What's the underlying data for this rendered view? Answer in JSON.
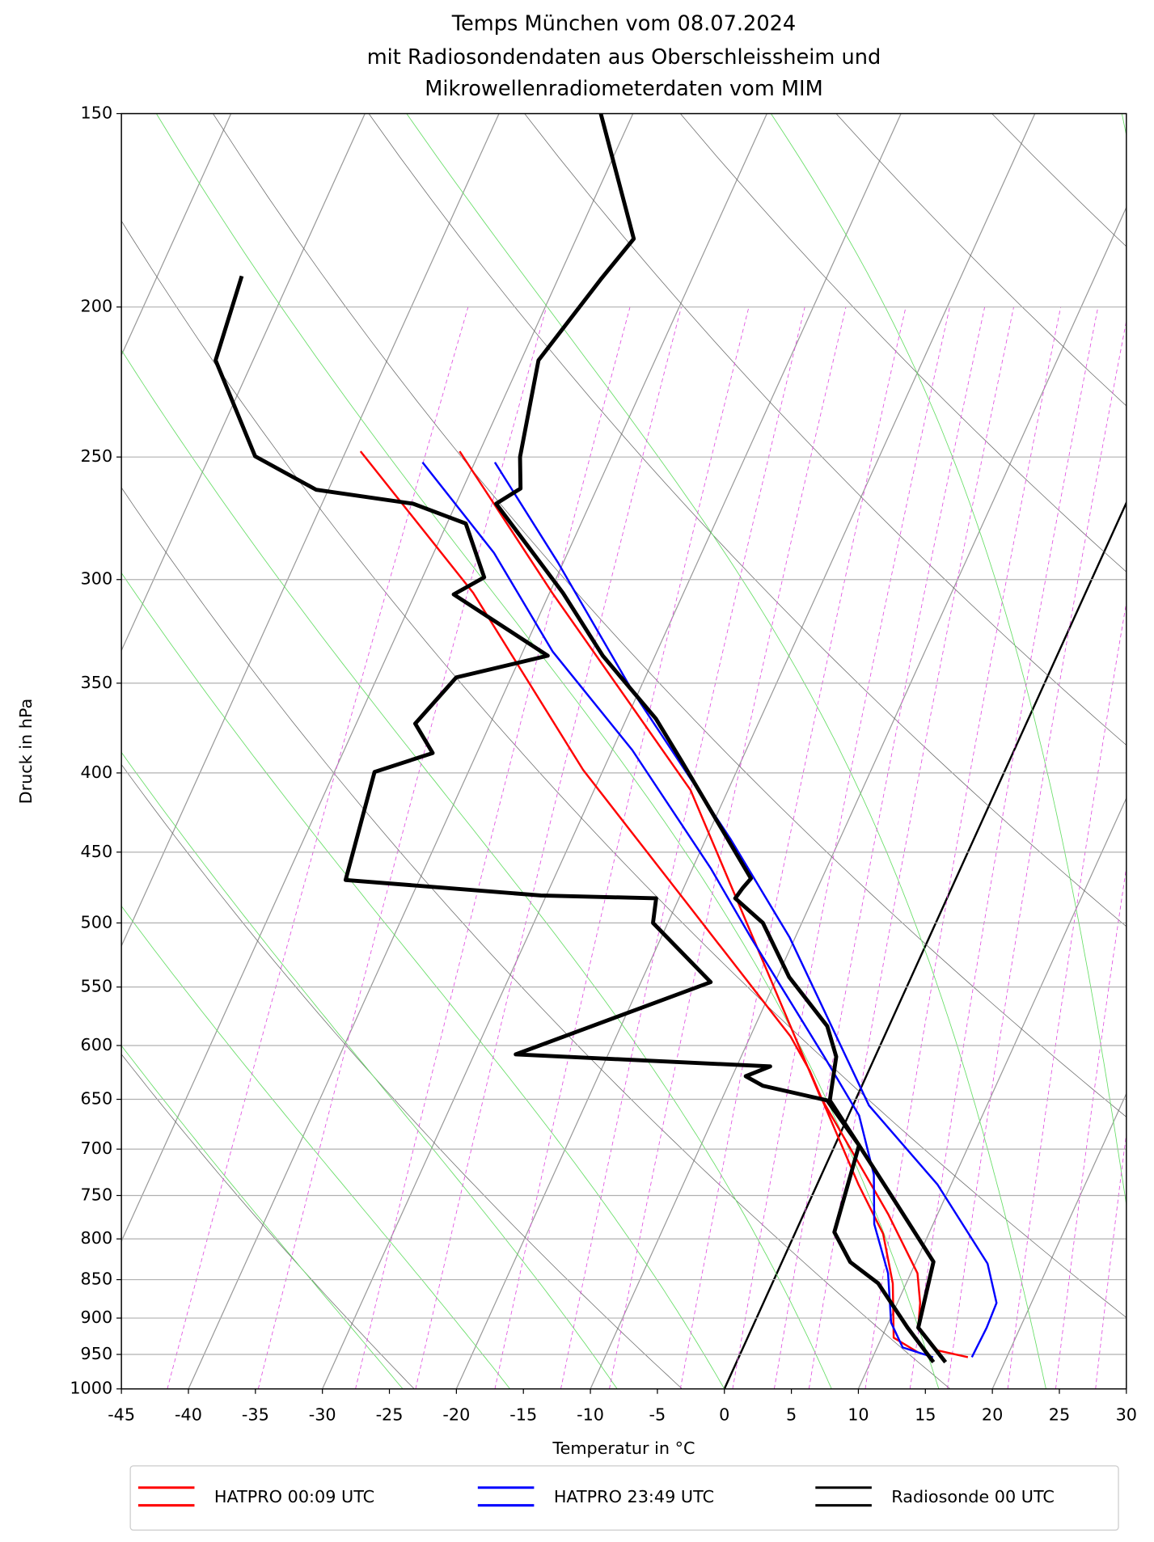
{
  "chart_data": {
    "type": "skewt",
    "title": [
      "Temps München vom 08.07.2024",
      "mit Radiosondendaten aus Oberschleissheim und",
      "Mikrowellenradiometerdaten vom MIM"
    ],
    "x_label": "Temperatur in °C",
    "y_label": "Druck in hPa",
    "log_y": true,
    "grid": true,
    "xlim": [
      -45,
      30
    ],
    "xticks": [
      -45,
      -40,
      -35,
      -30,
      -25,
      -20,
      -15,
      -10,
      -5,
      0,
      5,
      10,
      15,
      20,
      25,
      30
    ],
    "ylim": [
      1000,
      150
    ],
    "yticks": [
      1000,
      950,
      900,
      850,
      800,
      750,
      700,
      650,
      600,
      550,
      500,
      450,
      400,
      350,
      300,
      250,
      200,
      150
    ],
    "series": [
      {
        "name": "HATPRO 00:09 UTC",
        "color": "#ff0000",
        "linewidth": 2,
        "lines": [
          {
            "pressure": [
              247.9,
              306,
              410.3,
              646.5,
              771,
              842,
              880,
              913,
              944.3,
              954
            ],
            "temperature": [
              -51.5,
              -39.8,
              -22.8,
              -2.8,
              6.3,
              10.5,
              11.7,
              12.4,
              14.6,
              17.1
            ]
          },
          {
            "pressure": [
              247.9,
              306,
              398.2,
              489,
              591.9,
              623,
              738,
              794,
              855,
              926.6,
              947
            ],
            "temperature": [
              -58.9,
              -45.7,
              -31.5,
              -18.8,
              -7.0,
              -4.4,
              3.1,
              6.6,
              9.0,
              10.9,
              13.2
            ]
          }
        ]
      },
      {
        "name": "HATPRO 23:49 UTC",
        "color": "#0000ff",
        "linewidth": 2,
        "lines": [
          {
            "pressure": [
              252,
              292.5,
              354,
              441,
              511,
              656,
              738,
              830,
              880,
              913,
              954
            ],
            "temperature": [
              -48.5,
              -40.4,
              -30.5,
              -18.2,
              -10.4,
              1.2,
              9.0,
              15.4,
              17.4,
              17.5,
              17.4
            ]
          },
          {
            "pressure": [
              252,
              288.3,
              333.8,
              386.6,
              461.3,
              511,
              610,
              665.9,
              727,
              782.5,
              842,
              906.2,
              940.2,
              954
            ],
            "temperature": [
              -53.9,
              -45.5,
              -37.8,
              -28.5,
              -18.6,
              -13.3,
              -3.8,
              0.8,
              3.9,
              5.6,
              8.3,
              10.2,
              11.9,
              14.5
            ]
          }
        ]
      },
      {
        "name": "Radiosonde 00 UTC",
        "color": "#000000",
        "linewidth": 4,
        "lines": [
          {
            "pressure": [
              961,
              913,
              827.7,
              754,
              696,
              651,
              610,
              583,
              542,
              500,
              482,
              475,
              468,
              392.6,
              369,
              336,
              306,
              268,
              262,
              250,
              216.5,
              192,
              180.7,
              150
            ],
            "temperature": [
              15.6,
              12.4,
              11.3,
              6.2,
              1.8,
              -1.9,
              -2.9,
              -4.6,
              -9.1,
              -12.9,
              -15.8,
              -15.6,
              -15.3,
              -24.5,
              -27.8,
              -33.9,
              -39.0,
              -47.0,
              -45.7,
              -46.8,
              -48.7,
              -46.8,
              -45.7,
              -52.4
            ]
          },
          {
            "pressure": [
              961,
              913,
              854.6,
              828,
              792,
              696,
              651,
              637,
              628,
              619,
              608,
              546,
              500,
              482,
              480,
              469,
              399.4,
              388.3,
              371.7,
              347,
              336,
              306.7,
              299,
              276,
              268,
              262.5,
              249.7,
              216.5,
              191
            ],
            "temperature": [
              14.7,
              11.6,
              7.9,
              5.1,
              2.9,
              1.8,
              -2.1,
              -7.4,
              -9.0,
              -7.5,
              -26.9,
              -14.8,
              -21.1,
              -21.7,
              -30.4,
              -45.5,
              -47.0,
              -43.3,
              -45.6,
              -44.1,
              -38.0,
              -47.1,
              -45.4,
              -48.6,
              -53.2,
              -60.9,
              -66.6,
              -72.8,
              -73.7
            ]
          }
        ]
      }
    ]
  }
}
